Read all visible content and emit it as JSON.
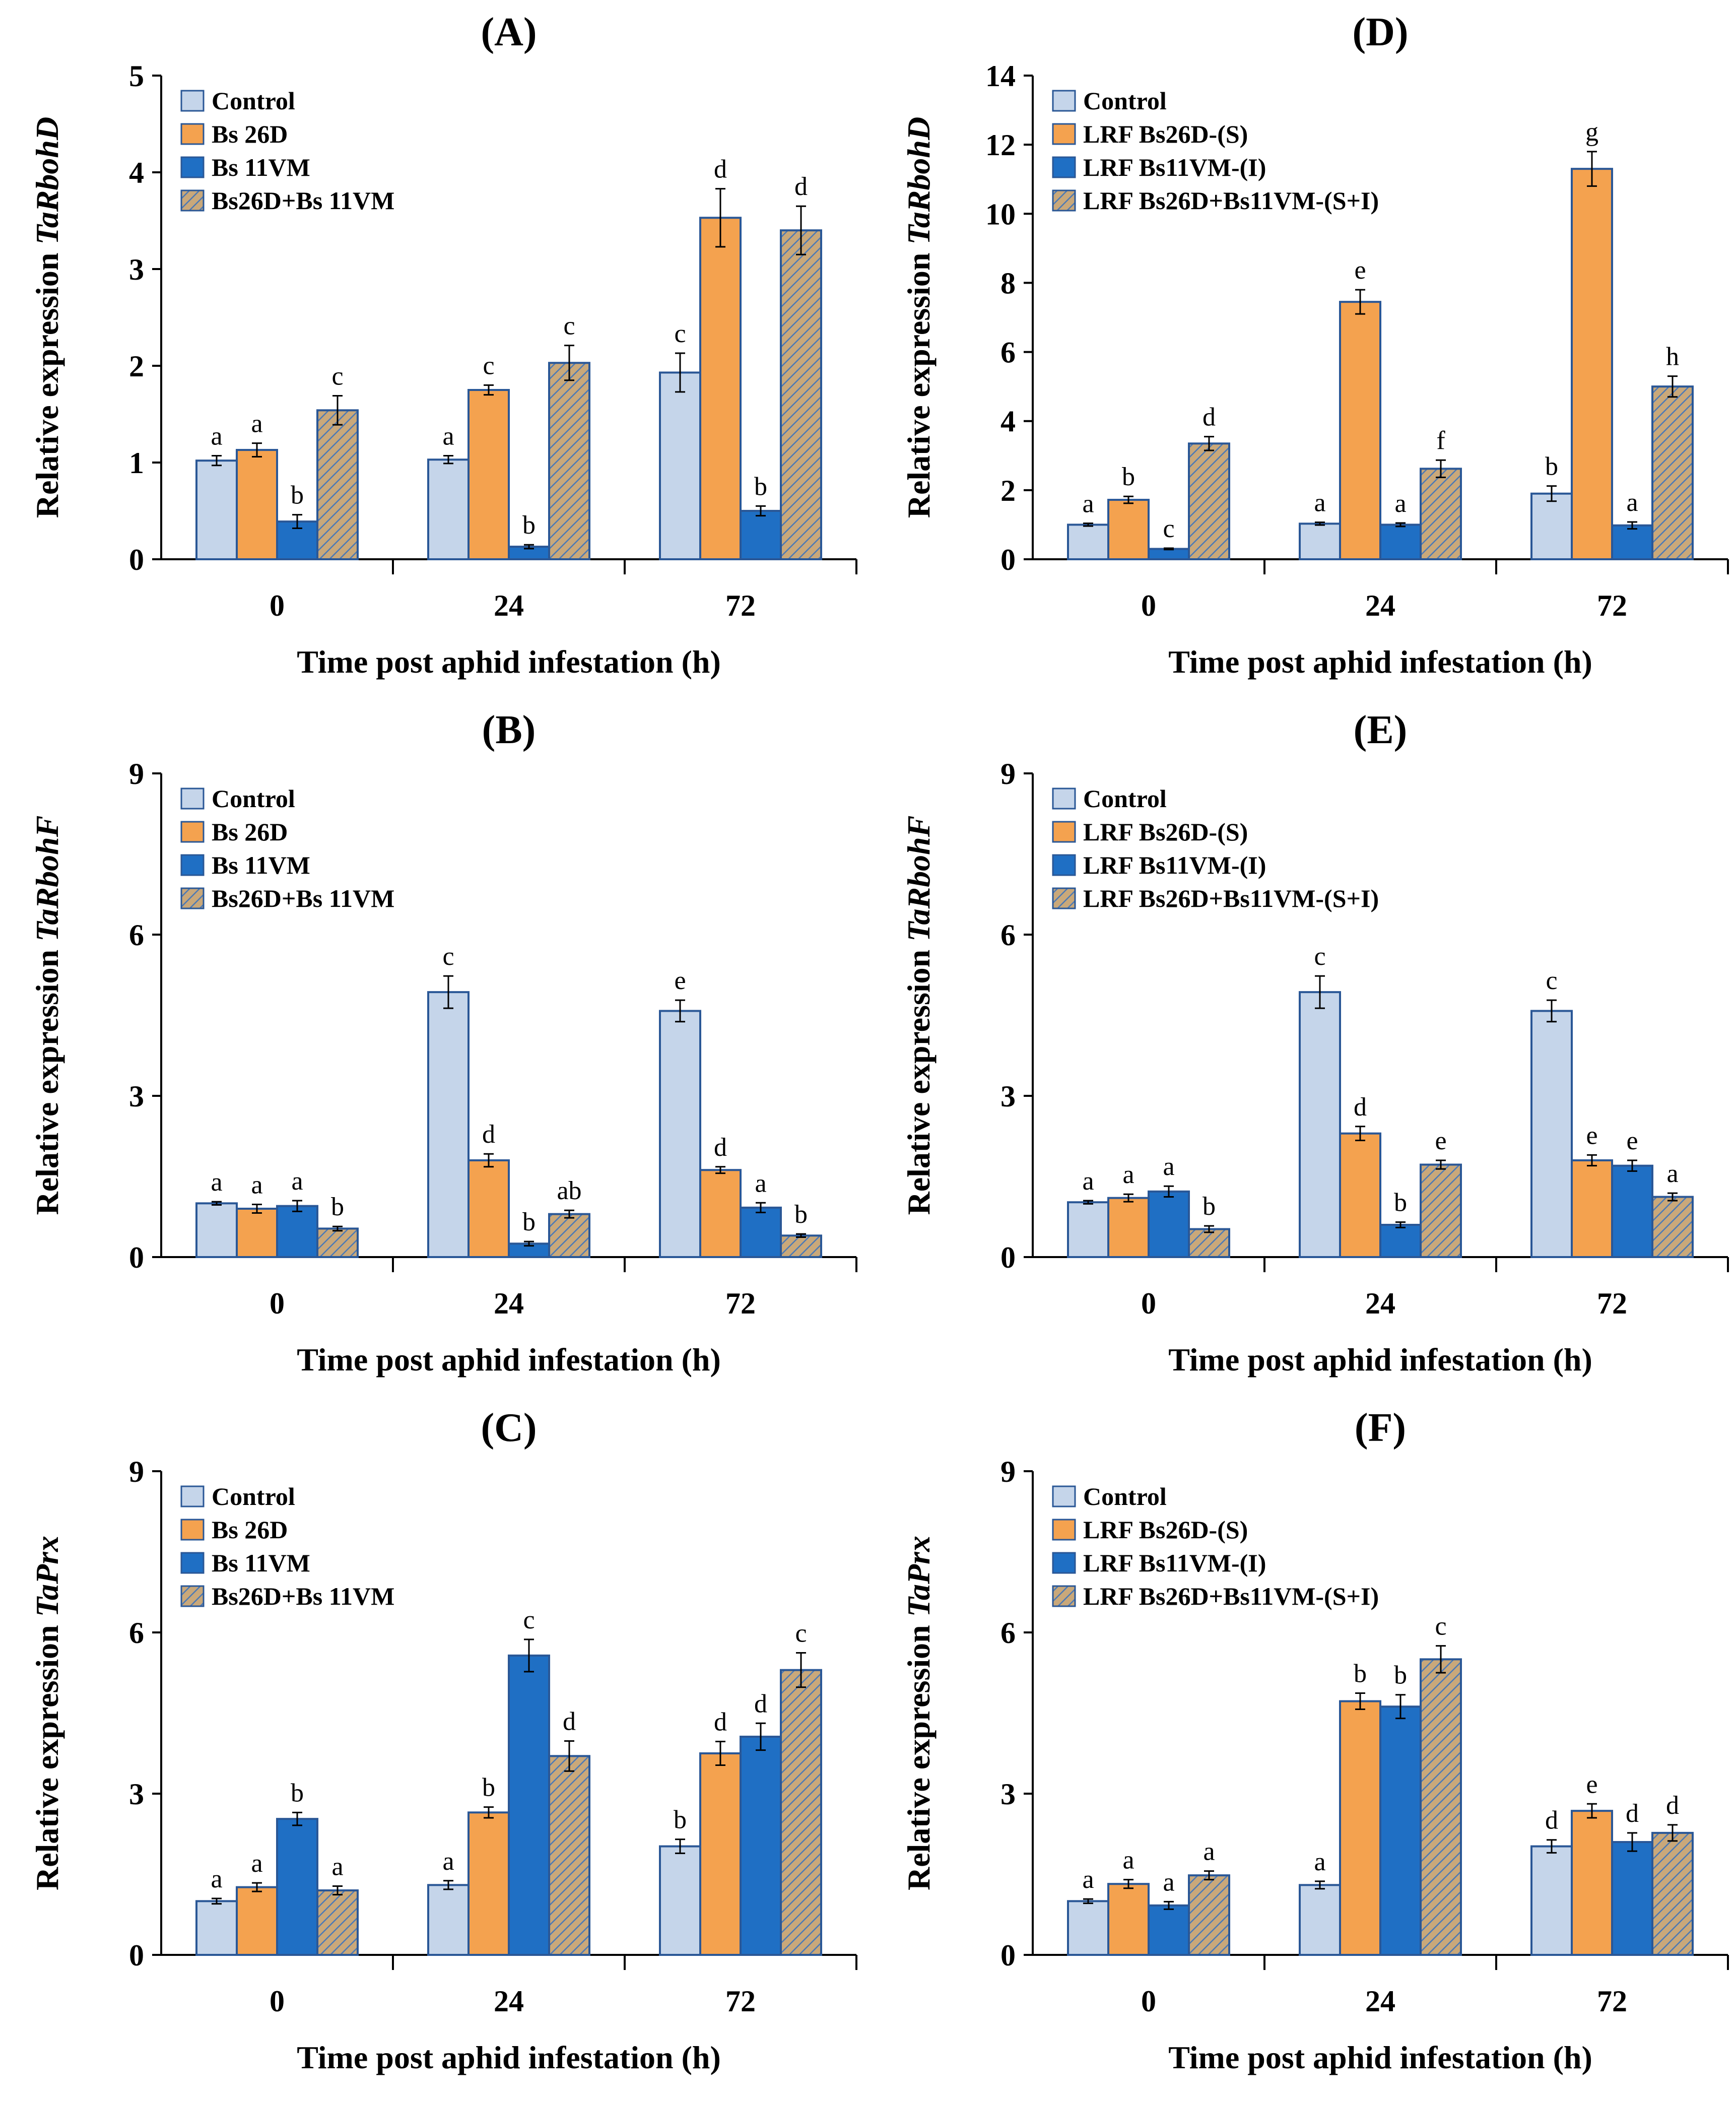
{
  "series_colors": [
    "#c5d5ea",
    "#f4a24f",
    "#1f6fc4",
    "#c9a87a"
  ],
  "bar_stroke": "#2a5796",
  "hatch_color": "#4b79b5",
  "chart_data": [
    {
      "type": "bar",
      "title": "(A)",
      "xlabel": "Time post aphid infestation (h)",
      "ylabel_prefix": "Relative expression ",
      "ylabel_gene": "TaRbohD",
      "ylim": [
        0,
        5
      ],
      "yticks": [
        0,
        1,
        2,
        3,
        4,
        5
      ],
      "categories": [
        "0",
        "24",
        "72"
      ],
      "series": [
        {
          "name": "Control",
          "values": [
            1.02,
            1.03,
            1.93
          ],
          "errors": [
            0.05,
            0.04,
            0.2
          ],
          "labels": [
            "a",
            "a",
            "c"
          ]
        },
        {
          "name": "Bs 26D",
          "values": [
            1.13,
            1.75,
            3.53
          ],
          "errors": [
            0.07,
            0.05,
            0.3
          ],
          "labels": [
            "a",
            "c",
            "d"
          ]
        },
        {
          "name": "Bs 11VM",
          "values": [
            0.39,
            0.13,
            0.5
          ],
          "errors": [
            0.07,
            0.02,
            0.05
          ],
          "labels": [
            "b",
            "b",
            "b"
          ]
        },
        {
          "name": "Bs26D+Bs 11VM",
          "values": [
            1.54,
            2.03,
            3.4
          ],
          "errors": [
            0.15,
            0.18,
            0.25
          ],
          "labels": [
            "c",
            "c",
            "d"
          ]
        }
      ]
    },
    {
      "type": "bar",
      "title": "(B)",
      "xlabel": "Time post aphid infestation (h)",
      "ylabel_prefix": "Relative expression ",
      "ylabel_gene": "TaRbohF",
      "ylim": [
        0,
        9
      ],
      "yticks": [
        0,
        3,
        6,
        9
      ],
      "categories": [
        "0",
        "24",
        "72"
      ],
      "series": [
        {
          "name": "Control",
          "values": [
            1.0,
            4.93,
            4.58
          ],
          "errors": [
            0.03,
            0.3,
            0.2
          ],
          "labels": [
            "a",
            "c",
            "e"
          ]
        },
        {
          "name": "Bs 26D",
          "values": [
            0.9,
            1.8,
            1.62
          ],
          "errors": [
            0.08,
            0.12,
            0.06
          ],
          "labels": [
            "a",
            "d",
            "d"
          ]
        },
        {
          "name": "Bs 11VM",
          "values": [
            0.95,
            0.25,
            0.92
          ],
          "errors": [
            0.1,
            0.04,
            0.09
          ],
          "labels": [
            "a",
            "b",
            "a"
          ]
        },
        {
          "name": "Bs26D+Bs 11VM",
          "values": [
            0.53,
            0.8,
            0.4
          ],
          "errors": [
            0.04,
            0.07,
            0.03
          ],
          "labels": [
            "b",
            "ab",
            "b"
          ]
        }
      ]
    },
    {
      "type": "bar",
      "title": "(C)",
      "xlabel": "Time post aphid infestation (h)",
      "ylabel_prefix": "Relative expression ",
      "ylabel_gene": "TaPrx",
      "ylim": [
        0,
        9
      ],
      "yticks": [
        0,
        3,
        6,
        9
      ],
      "categories": [
        "0",
        "24",
        "72"
      ],
      "series": [
        {
          "name": "Control",
          "values": [
            1.0,
            1.3,
            2.02
          ],
          "errors": [
            0.05,
            0.08,
            0.13
          ],
          "labels": [
            "a",
            "a",
            "b"
          ]
        },
        {
          "name": "Bs 26D",
          "values": [
            1.26,
            2.65,
            3.75
          ],
          "errors": [
            0.08,
            0.1,
            0.22
          ],
          "labels": [
            "a",
            "b",
            "d"
          ]
        },
        {
          "name": "Bs 11VM",
          "values": [
            2.53,
            5.57,
            4.06
          ],
          "errors": [
            0.12,
            0.3,
            0.25
          ],
          "labels": [
            "b",
            "c",
            "d"
          ]
        },
        {
          "name": "Bs26D+Bs 11VM",
          "values": [
            1.2,
            3.7,
            5.3
          ],
          "errors": [
            0.08,
            0.28,
            0.32
          ],
          "labels": [
            "a",
            "d",
            "c"
          ]
        }
      ]
    },
    {
      "type": "bar",
      "title": "(D)",
      "xlabel": "Time post aphid infestation (h)",
      "ylabel_prefix": "Relative expression ",
      "ylabel_gene": "TaRbohD",
      "ylim": [
        0,
        14
      ],
      "yticks": [
        0,
        2,
        4,
        6,
        8,
        10,
        12,
        14
      ],
      "categories": [
        "0",
        "24",
        "72"
      ],
      "series": [
        {
          "name": "Control",
          "values": [
            1.0,
            1.03,
            1.9
          ],
          "errors": [
            0.04,
            0.04,
            0.22
          ],
          "labels": [
            "a",
            "a",
            "b"
          ]
        },
        {
          "name": "LRF Bs26D-(S)",
          "values": [
            1.72,
            7.45,
            11.3
          ],
          "errors": [
            0.1,
            0.35,
            0.5
          ],
          "labels": [
            "b",
            "e",
            "g"
          ]
        },
        {
          "name": "LRF Bs11VM-(I)",
          "values": [
            0.3,
            1.0,
            0.98
          ],
          "errors": [
            0.02,
            0.05,
            0.1
          ],
          "labels": [
            "c",
            "a",
            "a"
          ]
        },
        {
          "name": "LRF Bs26D+Bs11VM-(S+I)",
          "values": [
            3.35,
            2.62,
            5.0
          ],
          "errors": [
            0.2,
            0.25,
            0.3
          ],
          "labels": [
            "d",
            "f",
            "h"
          ]
        }
      ]
    },
    {
      "type": "bar",
      "title": "(E)",
      "xlabel": "Time post aphid infestation (h)",
      "ylabel_prefix": "Relative expression ",
      "ylabel_gene": "TaRbohF",
      "ylim": [
        0,
        9
      ],
      "yticks": [
        0,
        3,
        6,
        9
      ],
      "categories": [
        "0",
        "24",
        "72"
      ],
      "series": [
        {
          "name": "Control",
          "values": [
            1.02,
            4.93,
            4.58
          ],
          "errors": [
            0.03,
            0.3,
            0.2
          ],
          "labels": [
            "a",
            "c",
            "c"
          ]
        },
        {
          "name": "LRF Bs26D-(S)",
          "values": [
            1.1,
            2.3,
            1.8
          ],
          "errors": [
            0.07,
            0.13,
            0.1
          ],
          "labels": [
            "a",
            "d",
            "e"
          ]
        },
        {
          "name": "LRF Bs11VM-(I)",
          "values": [
            1.22,
            0.6,
            1.7
          ],
          "errors": [
            0.1,
            0.05,
            0.1
          ],
          "labels": [
            "a",
            "b",
            "e"
          ]
        },
        {
          "name": "LRF Bs26D+Bs11VM-(S+I)",
          "values": [
            0.52,
            1.72,
            1.12
          ],
          "errors": [
            0.06,
            0.08,
            0.07
          ],
          "labels": [
            "b",
            "e",
            "a"
          ]
        }
      ]
    },
    {
      "type": "bar",
      "title": "(F)",
      "xlabel": "Time post aphid infestation (h)",
      "ylabel_prefix": "Relative expression ",
      "ylabel_gene": "TaPrx",
      "ylim": [
        0,
        9
      ],
      "yticks": [
        0,
        3,
        6,
        9
      ],
      "categories": [
        "0",
        "24",
        "72"
      ],
      "series": [
        {
          "name": "Control",
          "values": [
            1.0,
            1.3,
            2.02
          ],
          "errors": [
            0.04,
            0.07,
            0.12
          ],
          "labels": [
            "a",
            "a",
            "d"
          ]
        },
        {
          "name": "LRF Bs26D-(S)",
          "values": [
            1.32,
            4.72,
            2.68
          ],
          "errors": [
            0.08,
            0.15,
            0.13
          ],
          "labels": [
            "a",
            "b",
            "e"
          ]
        },
        {
          "name": "LRF Bs11VM-(I)",
          "values": [
            0.92,
            4.62,
            2.1
          ],
          "errors": [
            0.07,
            0.22,
            0.17
          ],
          "labels": [
            "a",
            "b",
            "d"
          ]
        },
        {
          "name": "LRF Bs26D+Bs11VM-(S+I)",
          "values": [
            1.48,
            5.5,
            2.27
          ],
          "errors": [
            0.08,
            0.25,
            0.15
          ],
          "labels": [
            "a",
            "c",
            "d"
          ]
        }
      ]
    }
  ]
}
